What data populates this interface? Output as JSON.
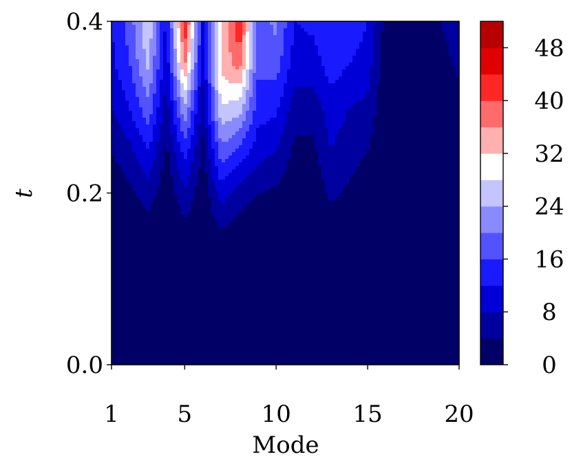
{
  "chart_data": {
    "type": "heatmap",
    "plot_style": "filled-contour",
    "title": "",
    "xlabel": "Mode",
    "ylabel": "t",
    "x_ticks": [
      "1",
      "5",
      "10",
      "15",
      "20"
    ],
    "y_ticks": [
      "0.0",
      "0.2",
      "0.4"
    ],
    "xlim": [
      1,
      20
    ],
    "ylim": [
      0,
      0.4
    ],
    "grid": false,
    "colormap": "seismic",
    "colorbar": {
      "ticks": [
        "0",
        "8",
        "16",
        "24",
        "32",
        "40",
        "48"
      ],
      "range": [
        0,
        52
      ],
      "levels": [
        0,
        4,
        8,
        12,
        16,
        20,
        24,
        28,
        32,
        36,
        40,
        44,
        48,
        52
      ],
      "colors": [
        "#000066",
        "#00009e",
        "#0000d6",
        "#1a1aff",
        "#5252ff",
        "#8a8aff",
        "#c4c4ff",
        "#ffffff",
        "#ffb0b0",
        "#ff6b6b",
        "#ff2626",
        "#e00000",
        "#b80000",
        "#8c0000"
      ]
    },
    "x": [
      1,
      2,
      3,
      4,
      5,
      6,
      7,
      8,
      9,
      10,
      11,
      12,
      13,
      14,
      15,
      16,
      17,
      18,
      19,
      20
    ],
    "y": [
      0.0,
      0.05,
      0.1,
      0.15,
      0.2,
      0.25,
      0.3,
      0.35,
      0.4
    ],
    "series": [
      {
        "t": 0.0,
        "values": [
          0,
          0,
          0,
          0,
          0,
          0,
          0,
          0,
          0,
          0,
          0,
          0,
          0,
          0,
          0,
          0,
          0,
          0,
          0,
          0
        ]
      },
      {
        "t": 0.05,
        "values": [
          0,
          0,
          0,
          0,
          0,
          0,
          0,
          0,
          0,
          0,
          0,
          0,
          0,
          0,
          0,
          0,
          0,
          0,
          0,
          0
        ]
      },
      {
        "t": 0.1,
        "values": [
          0,
          0,
          0,
          0,
          0,
          0,
          0,
          0,
          0,
          0,
          0,
          0,
          0,
          0,
          0,
          0,
          0,
          0,
          0,
          0
        ]
      },
      {
        "t": 0.15,
        "values": [
          0,
          0,
          1,
          0,
          2,
          0,
          3,
          1,
          0,
          0,
          0,
          0,
          1,
          0,
          0,
          0,
          0,
          0,
          0,
          0
        ]
      },
      {
        "t": 0.2,
        "values": [
          1,
          3,
          6,
          1,
          7,
          1,
          10,
          6,
          4,
          3,
          1,
          1,
          5,
          3,
          1,
          0,
          0,
          0,
          0,
          0
        ]
      },
      {
        "t": 0.25,
        "values": [
          4,
          7,
          12,
          3,
          14,
          3,
          19,
          15,
          10,
          8,
          3,
          3,
          8,
          6,
          4,
          0,
          0,
          0,
          0,
          0
        ]
      },
      {
        "t": 0.3,
        "values": [
          8,
          12,
          19,
          6,
          24,
          6,
          28,
          26,
          14,
          13,
          6,
          6,
          10,
          8,
          7,
          0,
          0,
          0,
          0,
          2
        ]
      },
      {
        "t": 0.35,
        "values": [
          11,
          16,
          25,
          9,
          37,
          9,
          33,
          38,
          17,
          18,
          10,
          10,
          14,
          12,
          10,
          1,
          1,
          1,
          2,
          5
        ]
      },
      {
        "t": 0.4,
        "values": [
          12,
          18,
          28,
          11,
          44,
          11,
          31,
          44,
          18,
          21,
          12,
          13,
          16,
          15,
          12,
          2,
          2,
          2,
          4,
          7
        ]
      }
    ]
  }
}
